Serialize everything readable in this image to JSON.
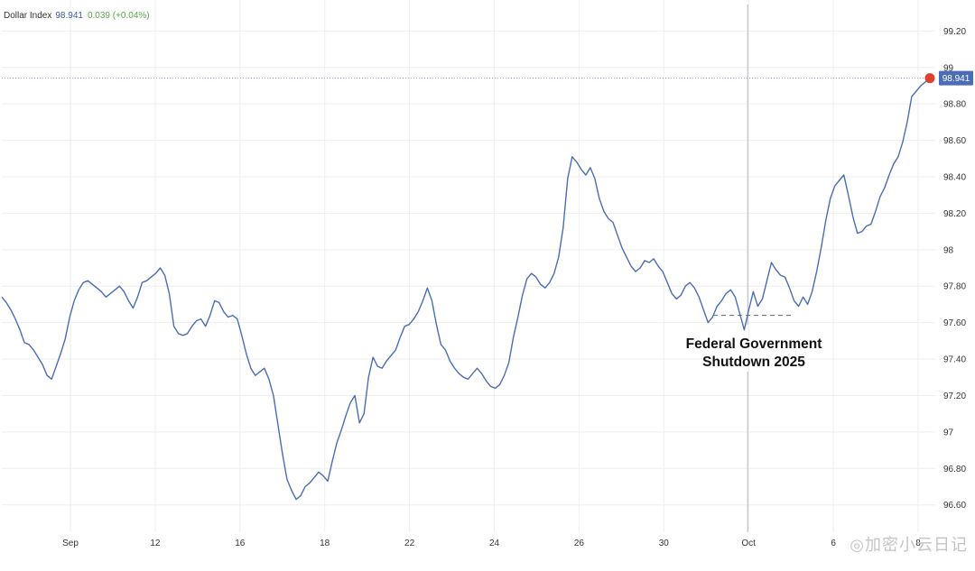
{
  "legend": {
    "name": "Dollar Index",
    "value": "98.941",
    "change": "0.039 (+0.04%)"
  },
  "watermark": "◎加密小云日记",
  "colors": {
    "line": "#4a6db5",
    "price_label_bg": "#4a6db5",
    "marker": "#d9432c",
    "grid": "#eeeeee",
    "axis_text": "#333333",
    "dashed": "#777777"
  },
  "chart_data": {
    "type": "line",
    "title": "",
    "xlabel": "",
    "ylabel": "",
    "ylim": [
      96.45,
      99.37
    ],
    "grid": true,
    "y_axis_position": "right",
    "y_ticks": [
      "96.60",
      "96.80",
      "97",
      "97.20",
      "97.40",
      "97.60",
      "97.80",
      "98",
      "98.20",
      "98.40",
      "98.60",
      "98.80",
      "99",
      "99.20"
    ],
    "x_ticks": [
      "Sep",
      "12",
      "16",
      "18",
      "22",
      "24",
      "26",
      "30",
      "Oct",
      "6",
      "8"
    ],
    "last_price_label": "98.941",
    "annotation": "Federal Government\nShutdown 2025",
    "series": [
      {
        "values": [
          97.74,
          97.71,
          97.67,
          97.62,
          97.56,
          97.49,
          97.48,
          97.45,
          97.41,
          97.37,
          97.31,
          97.29,
          97.36,
          97.43,
          97.51,
          97.63,
          97.72,
          97.78,
          97.82,
          97.83,
          97.81,
          97.79,
          97.77,
          97.74,
          97.76,
          97.78,
          97.8,
          97.77,
          97.72,
          97.68,
          97.74,
          97.82,
          97.83,
          97.85,
          97.87,
          97.9,
          97.86,
          97.76,
          97.58,
          97.54,
          97.53,
          97.54,
          97.58,
          97.61,
          97.62,
          97.58,
          97.64,
          97.72,
          97.71,
          97.66,
          97.63,
          97.64,
          97.62,
          97.53,
          97.43,
          97.35,
          97.31,
          97.33,
          97.35,
          97.29,
          97.2,
          97.04,
          96.88,
          96.74,
          96.68,
          96.63,
          96.65,
          96.7,
          96.72,
          96.75,
          96.78,
          96.76,
          96.73,
          96.84,
          96.94,
          97.01,
          97.09,
          97.16,
          97.2,
          97.05,
          97.1,
          97.3,
          97.41,
          97.36,
          97.35,
          97.39,
          97.42,
          97.45,
          97.52,
          97.58,
          97.59,
          97.62,
          97.66,
          97.72,
          97.79,
          97.72,
          97.59,
          97.48,
          97.45,
          97.39,
          97.35,
          97.32,
          97.3,
          97.29,
          97.32,
          97.35,
          97.32,
          97.28,
          97.25,
          97.24,
          97.26,
          97.31,
          97.38,
          97.52,
          97.63,
          97.75,
          97.84,
          97.87,
          97.85,
          97.81,
          97.79,
          97.82,
          97.87,
          97.96,
          98.12,
          98.39,
          98.51,
          98.48,
          98.44,
          98.41,
          98.45,
          98.39,
          98.28,
          98.21,
          98.17,
          98.15,
          98.08,
          98.01,
          97.96,
          97.91,
          97.88,
          97.9,
          97.94,
          97.93,
          97.95,
          97.91,
          97.88,
          97.82,
          97.76,
          97.73,
          97.75,
          97.8,
          97.82,
          97.79,
          97.74,
          97.67,
          97.6,
          97.63,
          97.69,
          97.72,
          97.76,
          97.78,
          97.74,
          97.65,
          97.56,
          97.67,
          97.77,
          97.69,
          97.73,
          97.83,
          97.93,
          97.89,
          97.86,
          97.85,
          97.79,
          97.72,
          97.69,
          97.74,
          97.7,
          97.77,
          97.88,
          98.01,
          98.16,
          98.28,
          98.35,
          98.38,
          98.41,
          98.3,
          98.18,
          98.09,
          98.1,
          98.13,
          98.14,
          98.21,
          98.29,
          98.34,
          98.41,
          98.47,
          98.51,
          98.59,
          98.7,
          98.84,
          98.87,
          98.9,
          98.92,
          98.941
        ]
      }
    ]
  }
}
